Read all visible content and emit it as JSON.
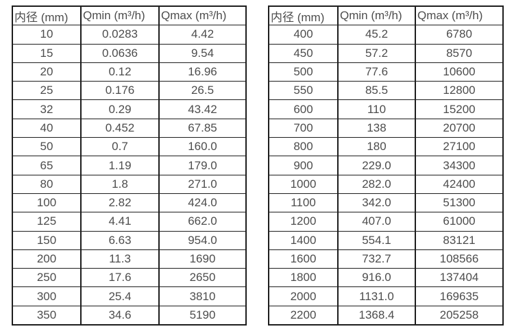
{
  "colors": {
    "background": "#ffffff",
    "border": "#1d1d1d",
    "text": "#4d4d4d"
  },
  "chart_data": [
    {
      "type": "table",
      "title": "",
      "columns": [
        "内径 (mm)",
        "Qmin (m³/h)",
        "Qmax (m³/h)"
      ],
      "rows": [
        [
          "10",
          "0.0283",
          "4.42"
        ],
        [
          "15",
          "0.0636",
          "9.54"
        ],
        [
          "20",
          "0.12",
          "16.96"
        ],
        [
          "25",
          "0.176",
          "26.5"
        ],
        [
          "32",
          "0.29",
          "43.42"
        ],
        [
          "40",
          "0.452",
          "67.85"
        ],
        [
          "50",
          "0.7",
          "160.0"
        ],
        [
          "65",
          "1.19",
          "179.0"
        ],
        [
          "80",
          "1.8",
          "271.0"
        ],
        [
          "100",
          "2.82",
          "424.0"
        ],
        [
          "125",
          "4.41",
          "662.0"
        ],
        [
          "150",
          "6.63",
          "954.0"
        ],
        [
          "200",
          "11.3",
          "1690"
        ],
        [
          "250",
          "17.6",
          "2650"
        ],
        [
          "300",
          "25.4",
          "3810"
        ],
        [
          "350",
          "34.6",
          "5190"
        ]
      ]
    },
    {
      "type": "table",
      "title": "",
      "columns": [
        "内径 (mm)",
        "Qmin (m³/h)",
        "Qmax (m³/h)"
      ],
      "rows": [
        [
          "400",
          "45.2",
          "6780"
        ],
        [
          "450",
          "57.2",
          "8570"
        ],
        [
          "500",
          "77.6",
          "10600"
        ],
        [
          "550",
          "85.5",
          "12800"
        ],
        [
          "600",
          "110",
          "15200"
        ],
        [
          "700",
          "138",
          "20700"
        ],
        [
          "800",
          "180",
          "27100"
        ],
        [
          "900",
          "229.0",
          "34300"
        ],
        [
          "1000",
          "282.0",
          "42400"
        ],
        [
          "1100",
          "342.0",
          "51300"
        ],
        [
          "1200",
          "407.0",
          "61000"
        ],
        [
          "1400",
          "554.1",
          "83121"
        ],
        [
          "1600",
          "732.7",
          "108566"
        ],
        [
          "1800",
          "916.0",
          "137404"
        ],
        [
          "2000",
          "1131.0",
          "169635"
        ],
        [
          "2200",
          "1368.4",
          "205258"
        ]
      ]
    }
  ]
}
